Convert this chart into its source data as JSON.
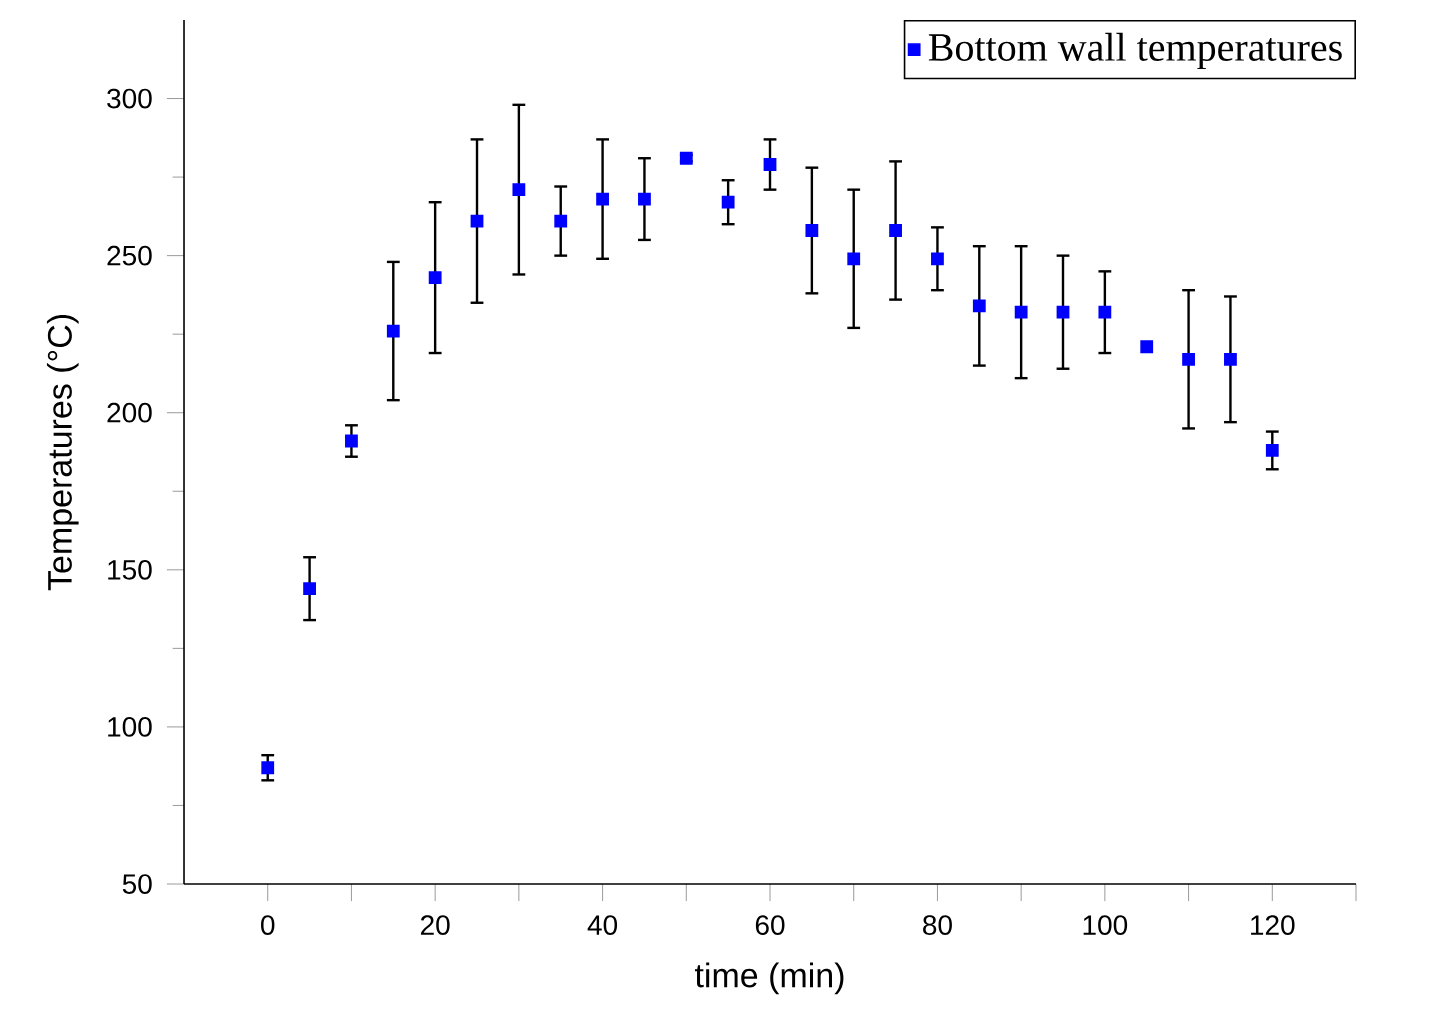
{
  "chart_data": {
    "type": "scatter",
    "xlabel": "time (min)",
    "ylabel": "Temperatures (°C)",
    "x": [
      0,
      5,
      10,
      15,
      20,
      25,
      30,
      35,
      40,
      45,
      50,
      55,
      60,
      65,
      70,
      75,
      80,
      85,
      90,
      95,
      100,
      105,
      110,
      115,
      120
    ],
    "series": [
      {
        "name": "Bottom wall temperatures",
        "color": "#0000ff",
        "values": [
          87,
          144,
          191,
          226,
          243,
          261,
          271,
          261,
          268,
          268,
          281,
          267,
          279,
          258,
          249,
          258,
          249,
          234,
          232,
          232,
          232,
          221,
          217,
          217,
          188
        ],
        "errors": [
          4,
          10,
          5,
          22,
          24,
          26,
          27,
          11,
          19,
          13,
          1,
          7,
          8,
          20,
          22,
          22,
          10,
          19,
          21,
          18,
          13,
          null,
          22,
          20,
          6
        ]
      }
    ],
    "xlim": [
      -10,
      130
    ],
    "ylim": [
      50,
      325
    ],
    "xticks": [
      0,
      {
        "value": 10,
        "label": null
      },
      20,
      {
        "value": 30,
        "label": null
      },
      40,
      {
        "value": 50,
        "label": null
      },
      60,
      {
        "value": 70,
        "label": null
      },
      80,
      {
        "value": 90,
        "label": null
      },
      100,
      {
        "value": 110,
        "label": null
      },
      120,
      {
        "value": 130,
        "label": null
      }
    ],
    "yticks": [
      50,
      100,
      150,
      200,
      250,
      300
    ],
    "marker": "square",
    "legend": "top right",
    "grid": false
  }
}
